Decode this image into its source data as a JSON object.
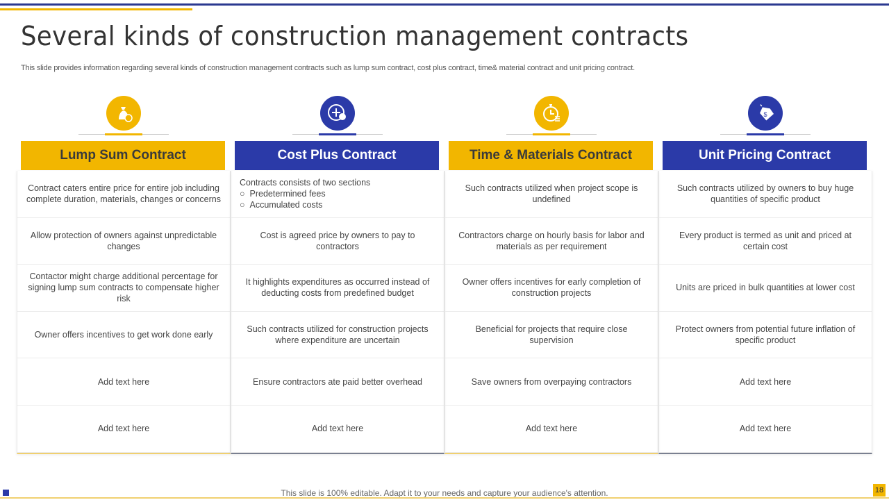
{
  "title": "Several kinds of construction management contracts",
  "subtitle": "This slide provides information regarding several kinds of construction management contracts such as lump sum contract, cost plus contract, time& material contract and unit pricing contract.",
  "colors": {
    "gold": "#F2B600",
    "blue": "#2B3AA8"
  },
  "columns": [
    {
      "title": "Lump Sum Contract",
      "icon": "money-bag-icon",
      "rows": [
        "Contract caters entire price for entire job including complete duration, materials, changes or concerns",
        "Allow protection of owners against unpredictable changes",
        "Contactor might charge additional percentage for signing lump sum contracts to compensate higher risk",
        "Owner offers incentives to get work done early",
        "Add text here",
        "Add text here"
      ]
    },
    {
      "title": "Cost Plus Contract",
      "icon": "plus-coin-icon",
      "intro": "Contracts consists of two sections",
      "bullets": [
        "Predetermined fees",
        "Accumulated costs"
      ],
      "rows": [
        "Cost is agreed price by owners to pay to contractors",
        "It highlights expenditures as occurred instead of deducting costs from predefined budget",
        "Such contracts utilized for construction projects where expenditure are uncertain",
        "Ensure contractors ate paid better overhead",
        "Add text here"
      ]
    },
    {
      "title": "Time & Materials Contract",
      "icon": "stopwatch-icon",
      "rows": [
        "Such contracts utilized when project scope is undefined",
        "Contractors charge on hourly basis for labor and materials as per requirement",
        "Owner offers incentives for early completion of construction projects",
        "Beneficial for projects that require close supervision",
        "Save owners from overpaying contractors",
        "Add text here"
      ]
    },
    {
      "title": "Unit Pricing Contract",
      "icon": "price-tag-icon",
      "rows": [
        "Such contracts utilized by owners to buy huge quantities of specific product",
        "Every product is termed as unit and priced at certain cost",
        "Units are priced in bulk quantities at lower cost",
        "Protect owners from potential future inflation of specific product",
        "Add text here",
        "Add text here"
      ]
    }
  ],
  "footer": "This slide is 100% editable. Adapt it to your needs and capture your audience's attention.",
  "page_number": "18"
}
